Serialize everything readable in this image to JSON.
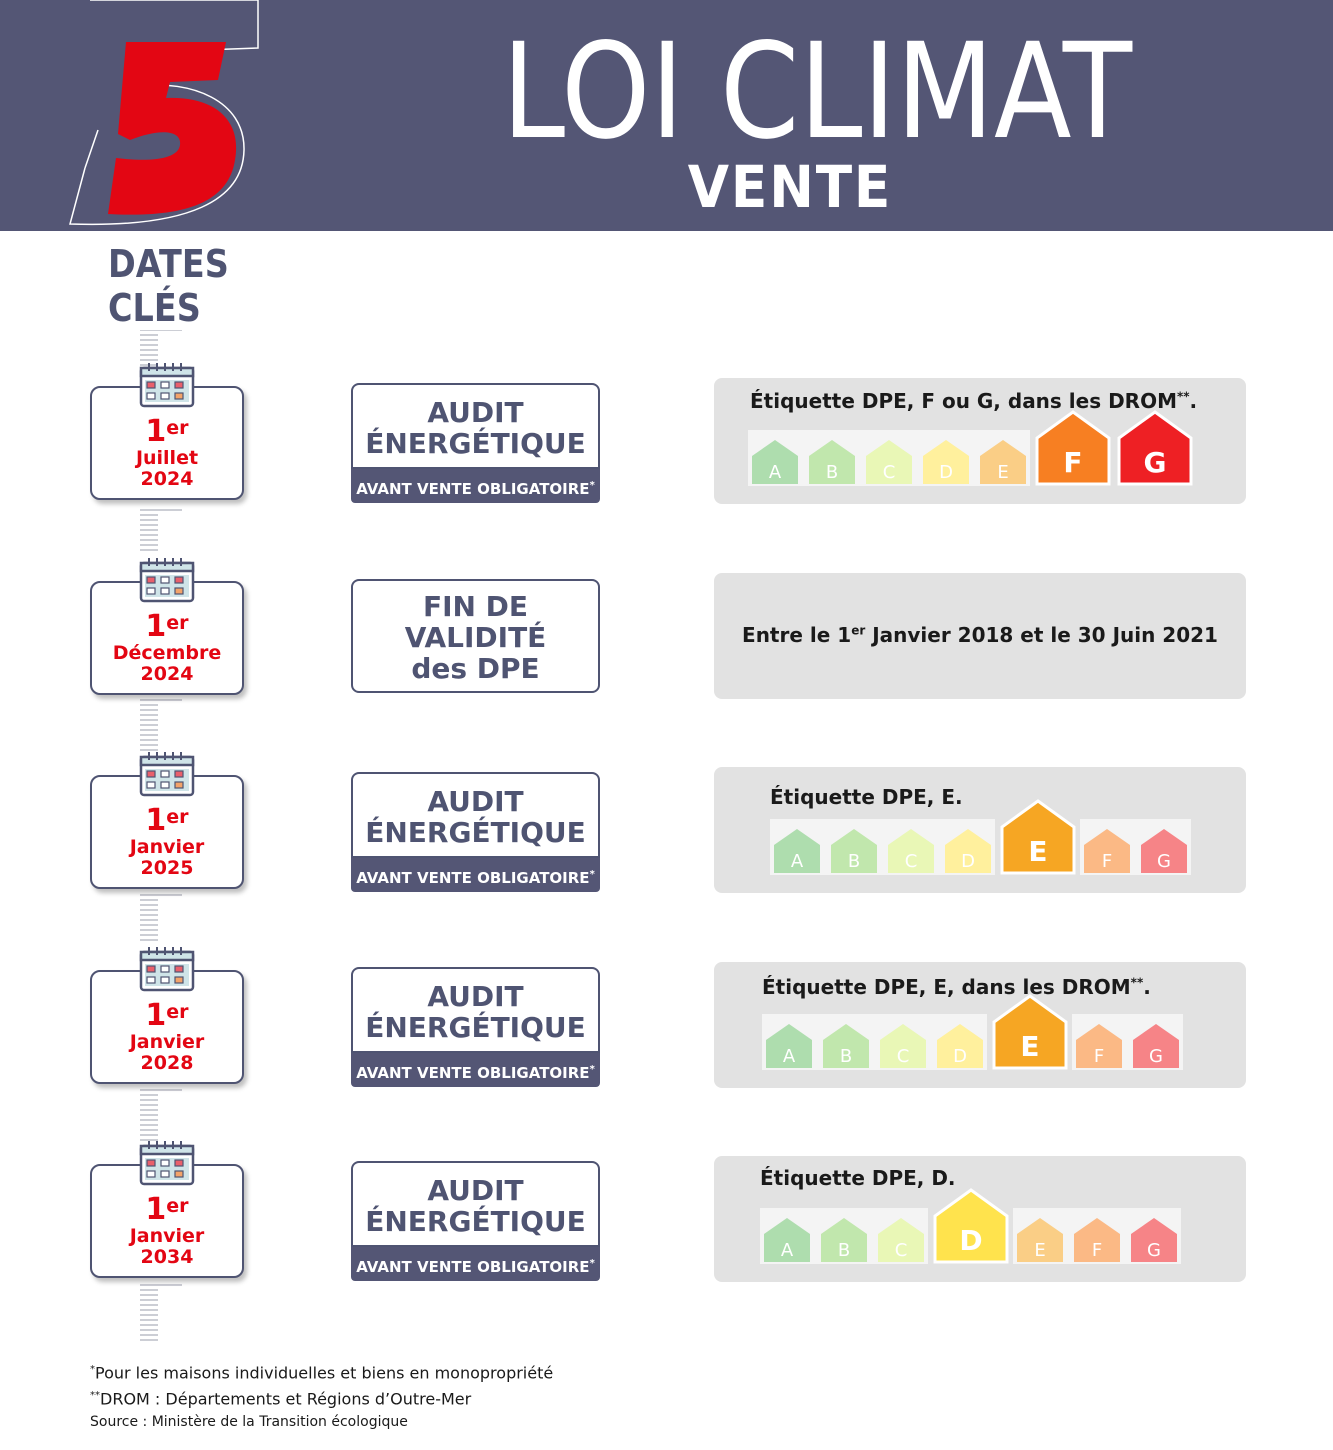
{
  "header": {
    "number": "5",
    "title": "LOI CLIMAT",
    "subtitle": "VENTE",
    "dates_line1": "DATES",
    "dates_line2": "CLÉS"
  },
  "colors": {
    "header_bg": "#545675",
    "red": "#e30613",
    "A": "#6cc16b",
    "B": "#8fd46a",
    "C": "#d7f07a",
    "D": "#ffe34d",
    "E": "#f6a623",
    "F": "#f77f22",
    "G": "#ee2024"
  },
  "rows": [
    {
      "day": "1",
      "day_sup": "er",
      "month": "Juillet",
      "year": "2024",
      "action_l1": "AUDIT",
      "action_l2": "ÉNERGÉTIQUE",
      "bar": "AVANT VENTE OBLIGATOIRE",
      "bar_sup": "*",
      "label_main": "Étiquette DPE, F ou G, dans les DROM",
      "label_sup": "**",
      "label_end": ".",
      "highlight": [
        "F",
        "G"
      ]
    },
    {
      "day": "1",
      "day_sup": "er",
      "month": "Décembre",
      "year": "2024",
      "action_l1": "FIN DE",
      "action_l2": "VALIDITÉ",
      "action_l3": "des DPE",
      "text_pre": "Entre le 1",
      "text_sup": "er",
      "text_post": " Janvier 2018 et le 30 Juin 2021"
    },
    {
      "day": "1",
      "day_sup": "er",
      "month": "Janvier",
      "year": "2025",
      "action_l1": "AUDIT",
      "action_l2": "ÉNERGÉTIQUE",
      "bar": "AVANT VENTE OBLIGATOIRE",
      "bar_sup": "*",
      "label_main": "Étiquette DPE, E.",
      "label_sup": "",
      "label_end": "",
      "highlight": [
        "E"
      ]
    },
    {
      "day": "1",
      "day_sup": "er",
      "month": "Janvier",
      "year": "2028",
      "action_l1": "AUDIT",
      "action_l2": "ÉNERGÉTIQUE",
      "bar": "AVANT VENTE OBLIGATOIRE",
      "bar_sup": "*",
      "label_main": "Étiquette DPE, E, dans les DROM",
      "label_sup": "**",
      "label_end": ".",
      "highlight": [
        "E"
      ]
    },
    {
      "day": "1",
      "day_sup": "er",
      "month": "Janvier",
      "year": "2034",
      "action_l1": "AUDIT",
      "action_l2": "ÉNERGÉTIQUE",
      "bar": "AVANT VENTE OBLIGATOIRE",
      "bar_sup": "*",
      "label_main": "Étiquette DPE, D.",
      "label_sup": "",
      "label_end": "",
      "highlight": [
        "D"
      ]
    }
  ],
  "letters": [
    "A",
    "B",
    "C",
    "D",
    "E",
    "F",
    "G"
  ],
  "footnotes": {
    "f1_sup": "*",
    "f1": "Pour les maisons individuelles et biens en monopropriété",
    "f2_sup": "**",
    "f2": "DROM : Départements et Régions d’Outre-Mer",
    "source": "Source : Ministère de la Transition écologique"
  }
}
